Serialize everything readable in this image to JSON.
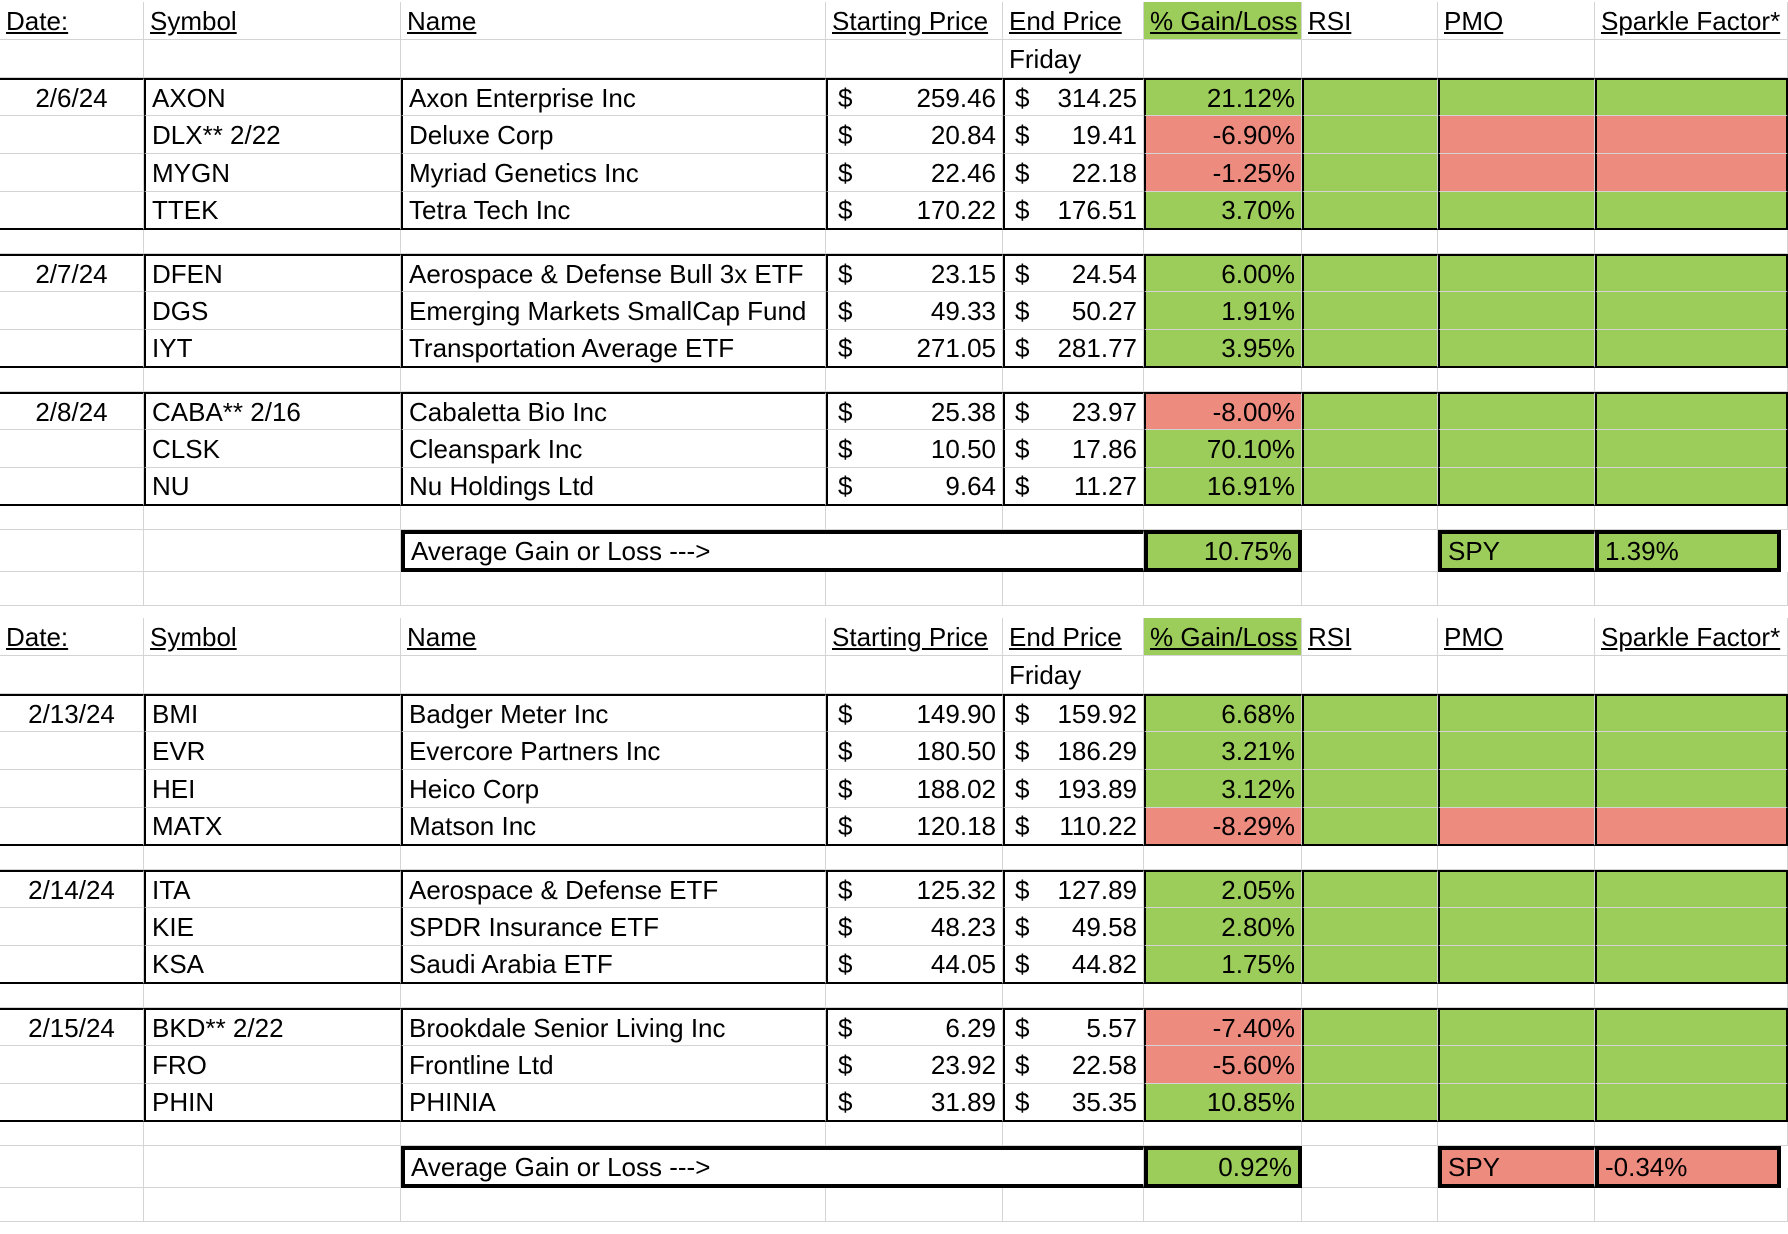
{
  "colors": {
    "gain": "#9ccc59",
    "loss": "#ee8b7f"
  },
  "header": {
    "date": "Date:",
    "symbol": "Symbol",
    "name": "Name",
    "start": "Starting Price",
    "end": "End Price",
    "pct": "% Gain/Loss",
    "rsi": "RSI",
    "pmo": "PMO",
    "sparkle": "Sparkle Factor*",
    "friday": "Friday"
  },
  "currency": "$",
  "avg_label": "Average Gain or Loss --->",
  "sections": [
    {
      "groups": [
        {
          "date": "2/6/24",
          "rows": [
            {
              "symbol": "AXON",
              "name": "Axon Enterprise Inc",
              "start": "259.46",
              "end": "314.25",
              "pct": "21.12%",
              "pct_status": "gain",
              "rsi": "gain",
              "pmo": "gain",
              "sparkle": "gain"
            },
            {
              "symbol": "DLX** 2/22",
              "name": "Deluxe Corp",
              "start": "20.84",
              "end": "19.41",
              "pct": "-6.90%",
              "pct_status": "loss",
              "rsi": "gain",
              "pmo": "loss",
              "sparkle": "loss"
            },
            {
              "symbol": "MYGN",
              "name": "Myriad Genetics Inc",
              "start": "22.46",
              "end": "22.18",
              "pct": "-1.25%",
              "pct_status": "loss",
              "rsi": "gain",
              "pmo": "loss",
              "sparkle": "loss"
            },
            {
              "symbol": "TTEK",
              "name": "Tetra Tech Inc",
              "start": "170.22",
              "end": "176.51",
              "pct": "3.70%",
              "pct_status": "gain",
              "rsi": "gain",
              "pmo": "gain",
              "sparkle": "gain"
            }
          ]
        },
        {
          "date": "2/7/24",
          "rows": [
            {
              "symbol": "DFEN",
              "name": "Aerospace & Defense Bull 3x ETF",
              "start": "23.15",
              "end": "24.54",
              "pct": "6.00%",
              "pct_status": "gain",
              "rsi": "gain",
              "pmo": "gain",
              "sparkle": "gain"
            },
            {
              "symbol": "DGS",
              "name": "Emerging Markets SmallCap Fund",
              "start": "49.33",
              "end": "50.27",
              "pct": "1.91%",
              "pct_status": "gain",
              "rsi": "gain",
              "pmo": "gain",
              "sparkle": "gain"
            },
            {
              "symbol": "IYT",
              "name": "Transportation Average ETF",
              "start": "271.05",
              "end": "281.77",
              "pct": "3.95%",
              "pct_status": "gain",
              "rsi": "gain",
              "pmo": "gain",
              "sparkle": "gain"
            }
          ]
        },
        {
          "date": "2/8/24",
          "rows": [
            {
              "symbol": "CABA** 2/16",
              "name": "Cabaletta Bio Inc",
              "start": "25.38",
              "end": "23.97",
              "pct": "-8.00%",
              "pct_status": "loss",
              "rsi": "gain",
              "pmo": "gain",
              "sparkle": "gain"
            },
            {
              "symbol": "CLSK",
              "name": "Cleanspark Inc",
              "start": "10.50",
              "end": "17.86",
              "pct": "70.10%",
              "pct_status": "gain",
              "rsi": "gain",
              "pmo": "gain",
              "sparkle": "gain"
            },
            {
              "symbol": "NU",
              "name": "Nu Holdings Ltd",
              "start": "9.64",
              "end": "11.27",
              "pct": "16.91%",
              "pct_status": "gain",
              "rsi": "gain",
              "pmo": "gain",
              "sparkle": "gain"
            }
          ]
        }
      ],
      "average": {
        "value": "10.75%",
        "status": "gain"
      },
      "spy": {
        "label": "SPY",
        "value": "1.39%",
        "status": "gain"
      }
    },
    {
      "groups": [
        {
          "date": "2/13/24",
          "rows": [
            {
              "symbol": "BMI",
              "name": "Badger Meter Inc",
              "start": "149.90",
              "end": "159.92",
              "pct": "6.68%",
              "pct_status": "gain",
              "rsi": "gain",
              "pmo": "gain",
              "sparkle": "gain"
            },
            {
              "symbol": "EVR",
              "name": "Evercore Partners Inc",
              "start": "180.50",
              "end": "186.29",
              "pct": "3.21%",
              "pct_status": "gain",
              "rsi": "gain",
              "pmo": "gain",
              "sparkle": "gain"
            },
            {
              "symbol": "HEI",
              "name": "Heico Corp",
              "start": "188.02",
              "end": "193.89",
              "pct": "3.12%",
              "pct_status": "gain",
              "rsi": "gain",
              "pmo": "gain",
              "sparkle": "gain"
            },
            {
              "symbol": "MATX",
              "name": "Matson Inc",
              "start": "120.18",
              "end": "110.22",
              "pct": "-8.29%",
              "pct_status": "loss",
              "rsi": "gain",
              "pmo": "loss",
              "sparkle": "loss"
            }
          ]
        },
        {
          "date": "2/14/24",
          "rows": [
            {
              "symbol": "ITA",
              "name": "Aerospace & Defense ETF",
              "start": "125.32",
              "end": "127.89",
              "pct": "2.05%",
              "pct_status": "gain",
              "rsi": "gain",
              "pmo": "gain",
              "sparkle": "gain"
            },
            {
              "symbol": "KIE",
              "name": "SPDR Insurance ETF",
              "start": "48.23",
              "end": "49.58",
              "pct": "2.80%",
              "pct_status": "gain",
              "rsi": "gain",
              "pmo": "gain",
              "sparkle": "gain"
            },
            {
              "symbol": "KSA",
              "name": "Saudi Arabia ETF",
              "start": "44.05",
              "end": "44.82",
              "pct": "1.75%",
              "pct_status": "gain",
              "rsi": "gain",
              "pmo": "gain",
              "sparkle": "gain"
            }
          ]
        },
        {
          "date": "2/15/24",
          "rows": [
            {
              "symbol": "BKD** 2/22",
              "name": "Brookdale Senior Living Inc",
              "start": "6.29",
              "end": "5.57",
              "pct": "-7.40%",
              "pct_status": "loss",
              "rsi": "gain",
              "pmo": "gain",
              "sparkle": "gain"
            },
            {
              "symbol": "FRO",
              "name": "Frontline Ltd",
              "start": "23.92",
              "end": "22.58",
              "pct": "-5.60%",
              "pct_status": "loss",
              "rsi": "gain",
              "pmo": "gain",
              "sparkle": "gain"
            },
            {
              "symbol": "PHIN",
              "name": "PHINIA",
              "start": "31.89",
              "end": "35.35",
              "pct": "10.85%",
              "pct_status": "gain",
              "rsi": "gain",
              "pmo": "gain",
              "sparkle": "gain"
            }
          ]
        }
      ],
      "average": {
        "value": "0.92%",
        "status": "gain"
      },
      "spy": {
        "label": "SPY",
        "value": "-0.34%",
        "status": "loss"
      }
    }
  ]
}
